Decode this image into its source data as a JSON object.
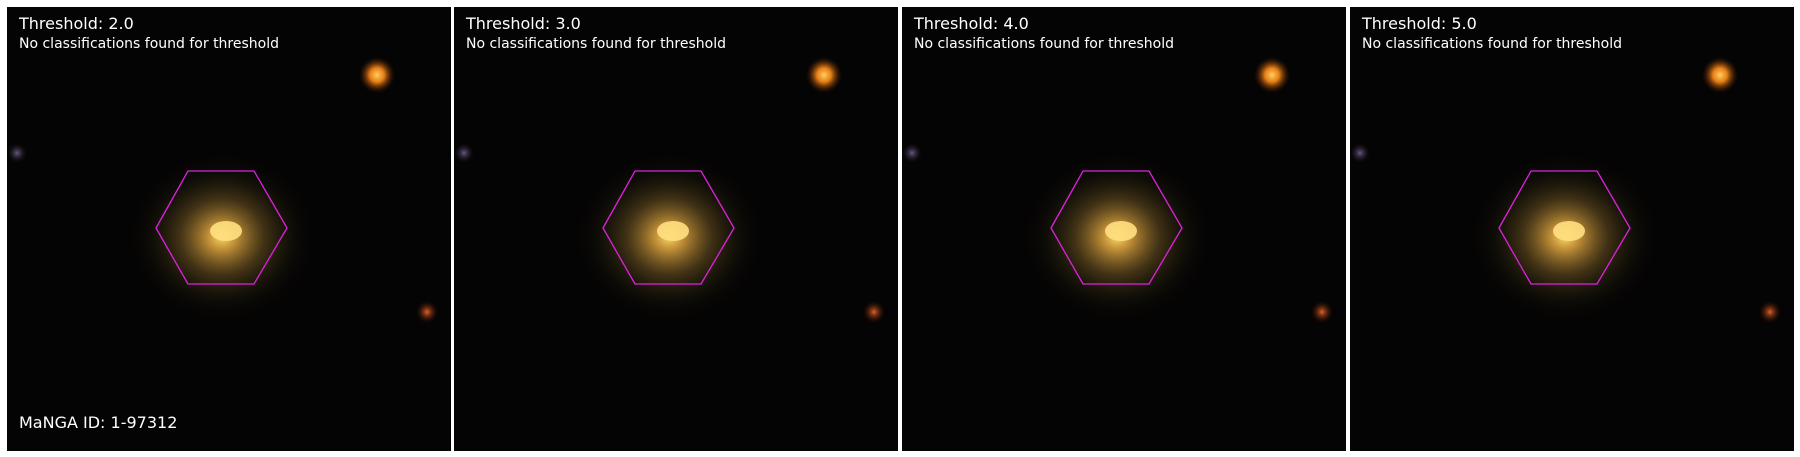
{
  "panels": [
    {
      "title": "Threshold: 2.0",
      "message": "No classifications found for threshold"
    },
    {
      "title": "Threshold: 3.0",
      "message": "No classifications found for threshold"
    },
    {
      "title": "Threshold: 4.0",
      "message": "No classifications found for threshold"
    },
    {
      "title": "Threshold: 5.0",
      "message": "No classifications found for threshold"
    }
  ],
  "manga_id_label": "MaNGA ID: 1-97312",
  "colors": {
    "background": "#050404",
    "hexagon_outline": "#e020e0",
    "galaxy_core": "#ffd060",
    "galaxy_halo": "#8a6a2a",
    "star_bright": "#ff9a20",
    "star_small": "#c44a20",
    "separator": "#ffffff"
  }
}
